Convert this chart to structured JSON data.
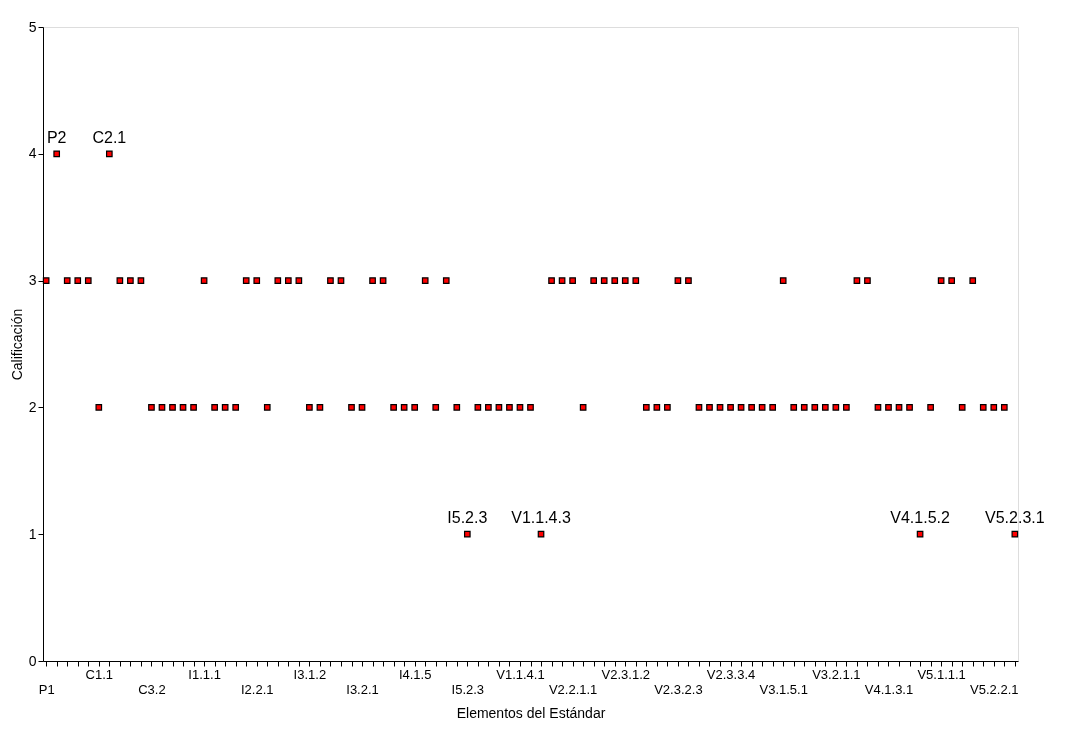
{
  "chart_data": {
    "type": "scatter",
    "xlabel": "Elementos del Estándar",
    "ylabel": "Calificación",
    "categories": [
      "P1",
      null,
      null,
      null,
      null,
      "C1.1",
      null,
      null,
      null,
      null,
      "C3.2",
      null,
      null,
      null,
      null,
      "I1.1.1",
      null,
      null,
      null,
      null,
      "I2.2.1",
      null,
      null,
      null,
      null,
      "I3.1.2",
      null,
      null,
      null,
      null,
      "I3.2.1",
      null,
      null,
      null,
      null,
      "I4.1.5",
      null,
      null,
      null,
      null,
      "I5.2.3",
      null,
      null,
      null,
      null,
      "V1.1.4.1",
      null,
      null,
      null,
      null,
      "V2.2.1.1",
      null,
      null,
      null,
      null,
      "V2.3.1.2",
      null,
      null,
      null,
      null,
      "V2.3.2.3",
      null,
      null,
      null,
      null,
      "V2.3.3.4",
      null,
      null,
      null,
      null,
      "V3.1.5.1",
      null,
      null,
      null,
      null,
      "V3.2.1.1",
      null,
      null,
      null,
      null,
      "V4.1.3.1",
      null,
      null,
      null,
      null,
      "V5.1.1.1",
      null,
      null,
      null,
      null,
      "V5.2.2.1",
      null,
      null
    ],
    "values": [
      3,
      4,
      3,
      3,
      3,
      2,
      4,
      3,
      3,
      3,
      2,
      2,
      2,
      2,
      2,
      3,
      2,
      2,
      2,
      3,
      3,
      2,
      3,
      3,
      3,
      2,
      2,
      3,
      3,
      2,
      2,
      3,
      3,
      2,
      2,
      2,
      3,
      2,
      3,
      2,
      1,
      2,
      2,
      2,
      2,
      2,
      2,
      1,
      3,
      3,
      3,
      2,
      3,
      3,
      3,
      3,
      3,
      2,
      2,
      2,
      3,
      3,
      2,
      2,
      2,
      2,
      2,
      2,
      2,
      2,
      3,
      2,
      2,
      2,
      2,
      2,
      2,
      3,
      3,
      2,
      2,
      2,
      2,
      1,
      2,
      3,
      3,
      2,
      3,
      2,
      2,
      2,
      1
    ],
    "value_labels": [
      null,
      "P2",
      null,
      null,
      null,
      null,
      "C2.1",
      null,
      null,
      null,
      null,
      null,
      null,
      null,
      null,
      null,
      null,
      null,
      null,
      null,
      null,
      null,
      null,
      null,
      null,
      null,
      null,
      null,
      null,
      null,
      null,
      null,
      null,
      null,
      null,
      null,
      null,
      null,
      null,
      null,
      "I5.2.3",
      null,
      null,
      null,
      null,
      null,
      null,
      "V1.1.4.3",
      null,
      null,
      null,
      null,
      null,
      null,
      null,
      null,
      null,
      null,
      null,
      null,
      null,
      null,
      null,
      null,
      null,
      null,
      null,
      null,
      null,
      null,
      null,
      null,
      null,
      null,
      null,
      null,
      null,
      null,
      null,
      null,
      null,
      null,
      null,
      "V4.1.5.2",
      null,
      null,
      null,
      null,
      null,
      null,
      null,
      null,
      "V5.2.3.1"
    ],
    "color": "#ff0000",
    "marker": "square",
    "ylim": [
      0,
      5
    ],
    "yticks": [
      0,
      1,
      2,
      3,
      4,
      5
    ],
    "grid": false
  }
}
